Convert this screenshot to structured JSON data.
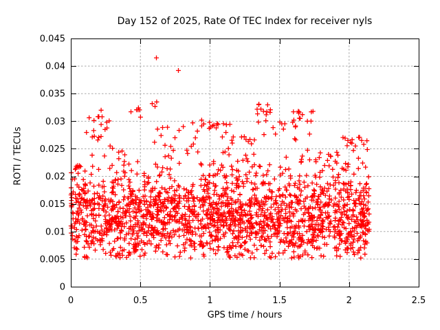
{
  "chart_data": {
    "type": "scatter",
    "title": "Day 152 of 2025, Rate Of TEC Index for receiver nyls",
    "xlabel": "GPS time / hours",
    "ylabel": "ROTI / TECUs",
    "xlim": [
      0,
      2.5
    ],
    "ylim": [
      0,
      0.045
    ],
    "x_ticks": {
      "values": [
        0,
        0.5,
        1,
        1.5,
        2,
        2.5
      ],
      "labels": [
        "0",
        "0.5",
        "1",
        "1.5",
        "2",
        "2.5"
      ]
    },
    "y_ticks": {
      "values": [
        0,
        0.005,
        0.01,
        0.015,
        0.02,
        0.025,
        0.03,
        0.035,
        0.04,
        0.045
      ],
      "labels": [
        "0",
        "0.005",
        "0.01",
        "0.015",
        "0.02",
        "0.025",
        "0.03",
        "0.035",
        "0.04",
        "0.045"
      ]
    },
    "grid": {
      "show": true,
      "style": "dashed"
    },
    "legend": {
      "show": false
    },
    "marker": {
      "shape": "plus",
      "size": 7,
      "stroke_width": 1.3
    },
    "colors": {
      "marker": "#ff0000",
      "grid": "#a8a8a8",
      "axis": "#000000",
      "text": "#000000",
      "background": "#ffffff"
    },
    "data_extent": {
      "x_min": 0.0,
      "x_max": 2.145,
      "y_min": 0.0048,
      "y_max": 0.0415
    },
    "cloud": {
      "description": "dense point cloud approximated from pixels; ~2000 30s-rate ROTI samples",
      "n_points": 2000,
      "seed": 1152,
      "x_range": [
        0.0,
        2.145
      ],
      "core_band": {
        "mean": 0.0118,
        "sigma": 0.0034,
        "min": 0.0052,
        "max": 0.021,
        "fraction": 0.76
      },
      "mid_band": {
        "base": 0.0145,
        "sigma": 0.005,
        "fraction": 0.18
      },
      "top_band_fraction": 0.06,
      "envelope_segments": [
        [
          0.0,
          0.08,
          0.023
        ],
        [
          0.08,
          0.3,
          0.031
        ],
        [
          0.3,
          0.42,
          0.0252
        ],
        [
          0.42,
          0.65,
          0.033
        ],
        [
          0.65,
          0.85,
          0.0295
        ],
        [
          0.85,
          1.15,
          0.0298
        ],
        [
          1.15,
          1.32,
          0.0272
        ],
        [
          1.32,
          1.47,
          0.033
        ],
        [
          1.47,
          1.75,
          0.0318
        ],
        [
          1.75,
          1.95,
          0.0246
        ],
        [
          1.95,
          2.145,
          0.0271
        ]
      ]
    },
    "outlier_points": [
      [
        0.615,
        0.0415
      ],
      [
        0.773,
        0.0392
      ],
      [
        0.585,
        0.0332
      ],
      [
        0.605,
        0.0327
      ],
      [
        0.617,
        0.0335
      ],
      [
        0.218,
        0.032
      ],
      [
        0.225,
        0.0308
      ],
      [
        0.94,
        0.0302
      ],
      [
        0.955,
        0.0295
      ],
      [
        1.028,
        0.0293
      ],
      [
        1.045,
        0.0288
      ],
      [
        1.352,
        0.0331
      ],
      [
        1.366,
        0.0322
      ],
      [
        1.385,
        0.0318
      ],
      [
        1.635,
        0.0318
      ],
      [
        1.648,
        0.0305
      ],
      [
        1.664,
        0.0312
      ],
      [
        1.7,
        0.03
      ],
      [
        2.075,
        0.0271
      ],
      [
        2.09,
        0.0265
      ],
      [
        2.105,
        0.0258
      ]
    ]
  }
}
